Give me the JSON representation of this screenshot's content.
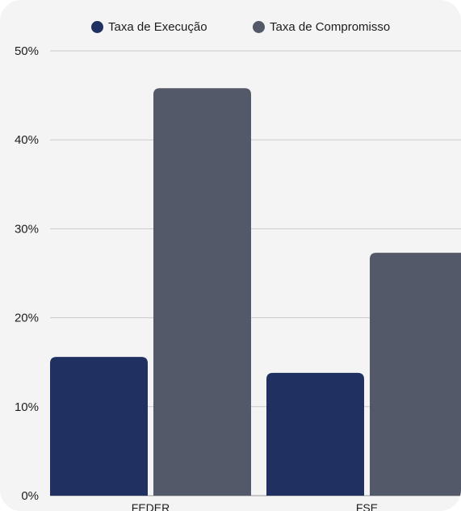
{
  "chart_data": {
    "type": "bar",
    "categories": [
      "FEDER",
      "FSE"
    ],
    "series": [
      {
        "name": "Taxa de Execução",
        "values": [
          15.6,
          13.8
        ],
        "color": "#1f3061"
      },
      {
        "name": "Taxa de Compromisso",
        "values": [
          45.8,
          27.3
        ],
        "color": "#535968"
      }
    ],
    "ylim": [
      0,
      50
    ],
    "yticks": [
      "0%",
      "10%",
      "20%",
      "30%",
      "40%",
      "50%"
    ],
    "ytick_values": [
      0,
      10,
      20,
      30,
      40,
      50
    ],
    "grid": true,
    "legend": "top-center"
  }
}
